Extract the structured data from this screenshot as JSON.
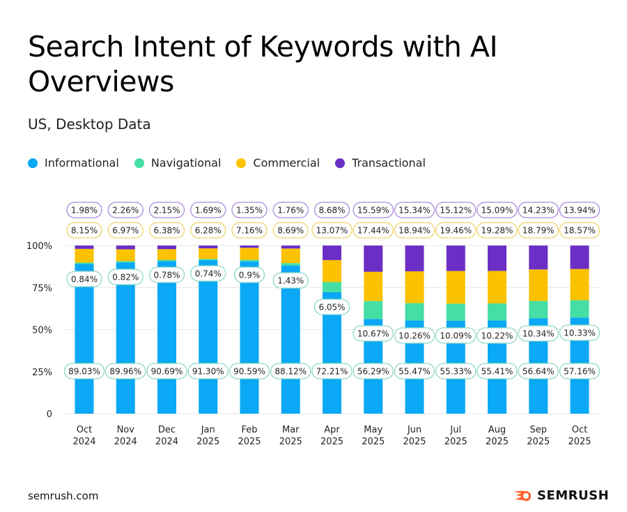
{
  "chart_data": {
    "type": "bar",
    "stacked": true,
    "title": "Search Intent of Keywords with AI Overviews",
    "subtitle": "US, Desktop Data",
    "legend_position": "top-left",
    "categories": [
      [
        "Oct",
        "2024"
      ],
      [
        "Nov",
        "2024"
      ],
      [
        "Dec",
        "2024"
      ],
      [
        "Jan",
        "2025"
      ],
      [
        "Feb",
        "2025"
      ],
      [
        "Mar",
        "2025"
      ],
      [
        "Apr",
        "2025"
      ],
      [
        "May",
        "2025"
      ],
      [
        "Jun",
        "2025"
      ],
      [
        "Jul",
        "2025"
      ],
      [
        "Aug",
        "2025"
      ],
      [
        "Sep",
        "2025"
      ],
      [
        "Oct",
        "2025"
      ]
    ],
    "ylim": [
      0,
      100
    ],
    "yticks": [
      "0",
      "25%",
      "50%",
      "75%",
      "100%"
    ],
    "grid": true,
    "series": [
      {
        "name": "Informational",
        "color": "#0aa8f5",
        "values": [
          89.03,
          89.96,
          90.69,
          91.3,
          90.59,
          88.12,
          72.21,
          56.29,
          55.47,
          55.33,
          55.41,
          56.64,
          57.16
        ],
        "labels": [
          "89.03%",
          "89.96%",
          "90.69%",
          "91.30%",
          "90.59%",
          "88.12%",
          "72.21%",
          "56.29%",
          "55.47%",
          "55.33%",
          "55.41%",
          "56.64%",
          "57.16%"
        ]
      },
      {
        "name": "Navigational",
        "color": "#45dea4",
        "values": [
          0.84,
          0.82,
          0.78,
          0.74,
          0.9,
          1.43,
          6.05,
          10.67,
          10.26,
          10.09,
          10.22,
          10.34,
          10.33
        ],
        "labels": [
          "0.84%",
          "0.82%",
          "0.78%",
          "0.74%",
          "0.9%",
          "1.43%",
          "6.05%",
          "10.67%",
          "10.26%",
          "10.09%",
          "10.22%",
          "10.34%",
          "10.33%"
        ]
      },
      {
        "name": "Commercial",
        "color": "#fcc200",
        "values": [
          8.15,
          6.97,
          6.38,
          6.28,
          7.16,
          8.69,
          13.07,
          17.44,
          18.94,
          19.46,
          19.28,
          18.79,
          18.57
        ],
        "labels": [
          "8.15%",
          "6.97%",
          "6.38%",
          "6.28%",
          "7.16%",
          "8.69%",
          "13.07%",
          "17.44%",
          "18.94%",
          "19.46%",
          "19.28%",
          "18.79%",
          "18.57%"
        ]
      },
      {
        "name": "Transactional",
        "color": "#6b2fc6",
        "values": [
          1.98,
          2.26,
          2.15,
          1.69,
          1.35,
          1.76,
          8.68,
          15.59,
          15.34,
          15.12,
          15.09,
          14.23,
          13.94
        ],
        "labels": [
          "1.98%",
          "2.26%",
          "2.15%",
          "1.69%",
          "1.35%",
          "1.76%",
          "8.68%",
          "15.59%",
          "15.34%",
          "15.12%",
          "15.09%",
          "14.23%",
          "13.94%"
        ]
      }
    ]
  },
  "footer": {
    "site": "semrush.com",
    "brand": "SEMRUSH"
  }
}
